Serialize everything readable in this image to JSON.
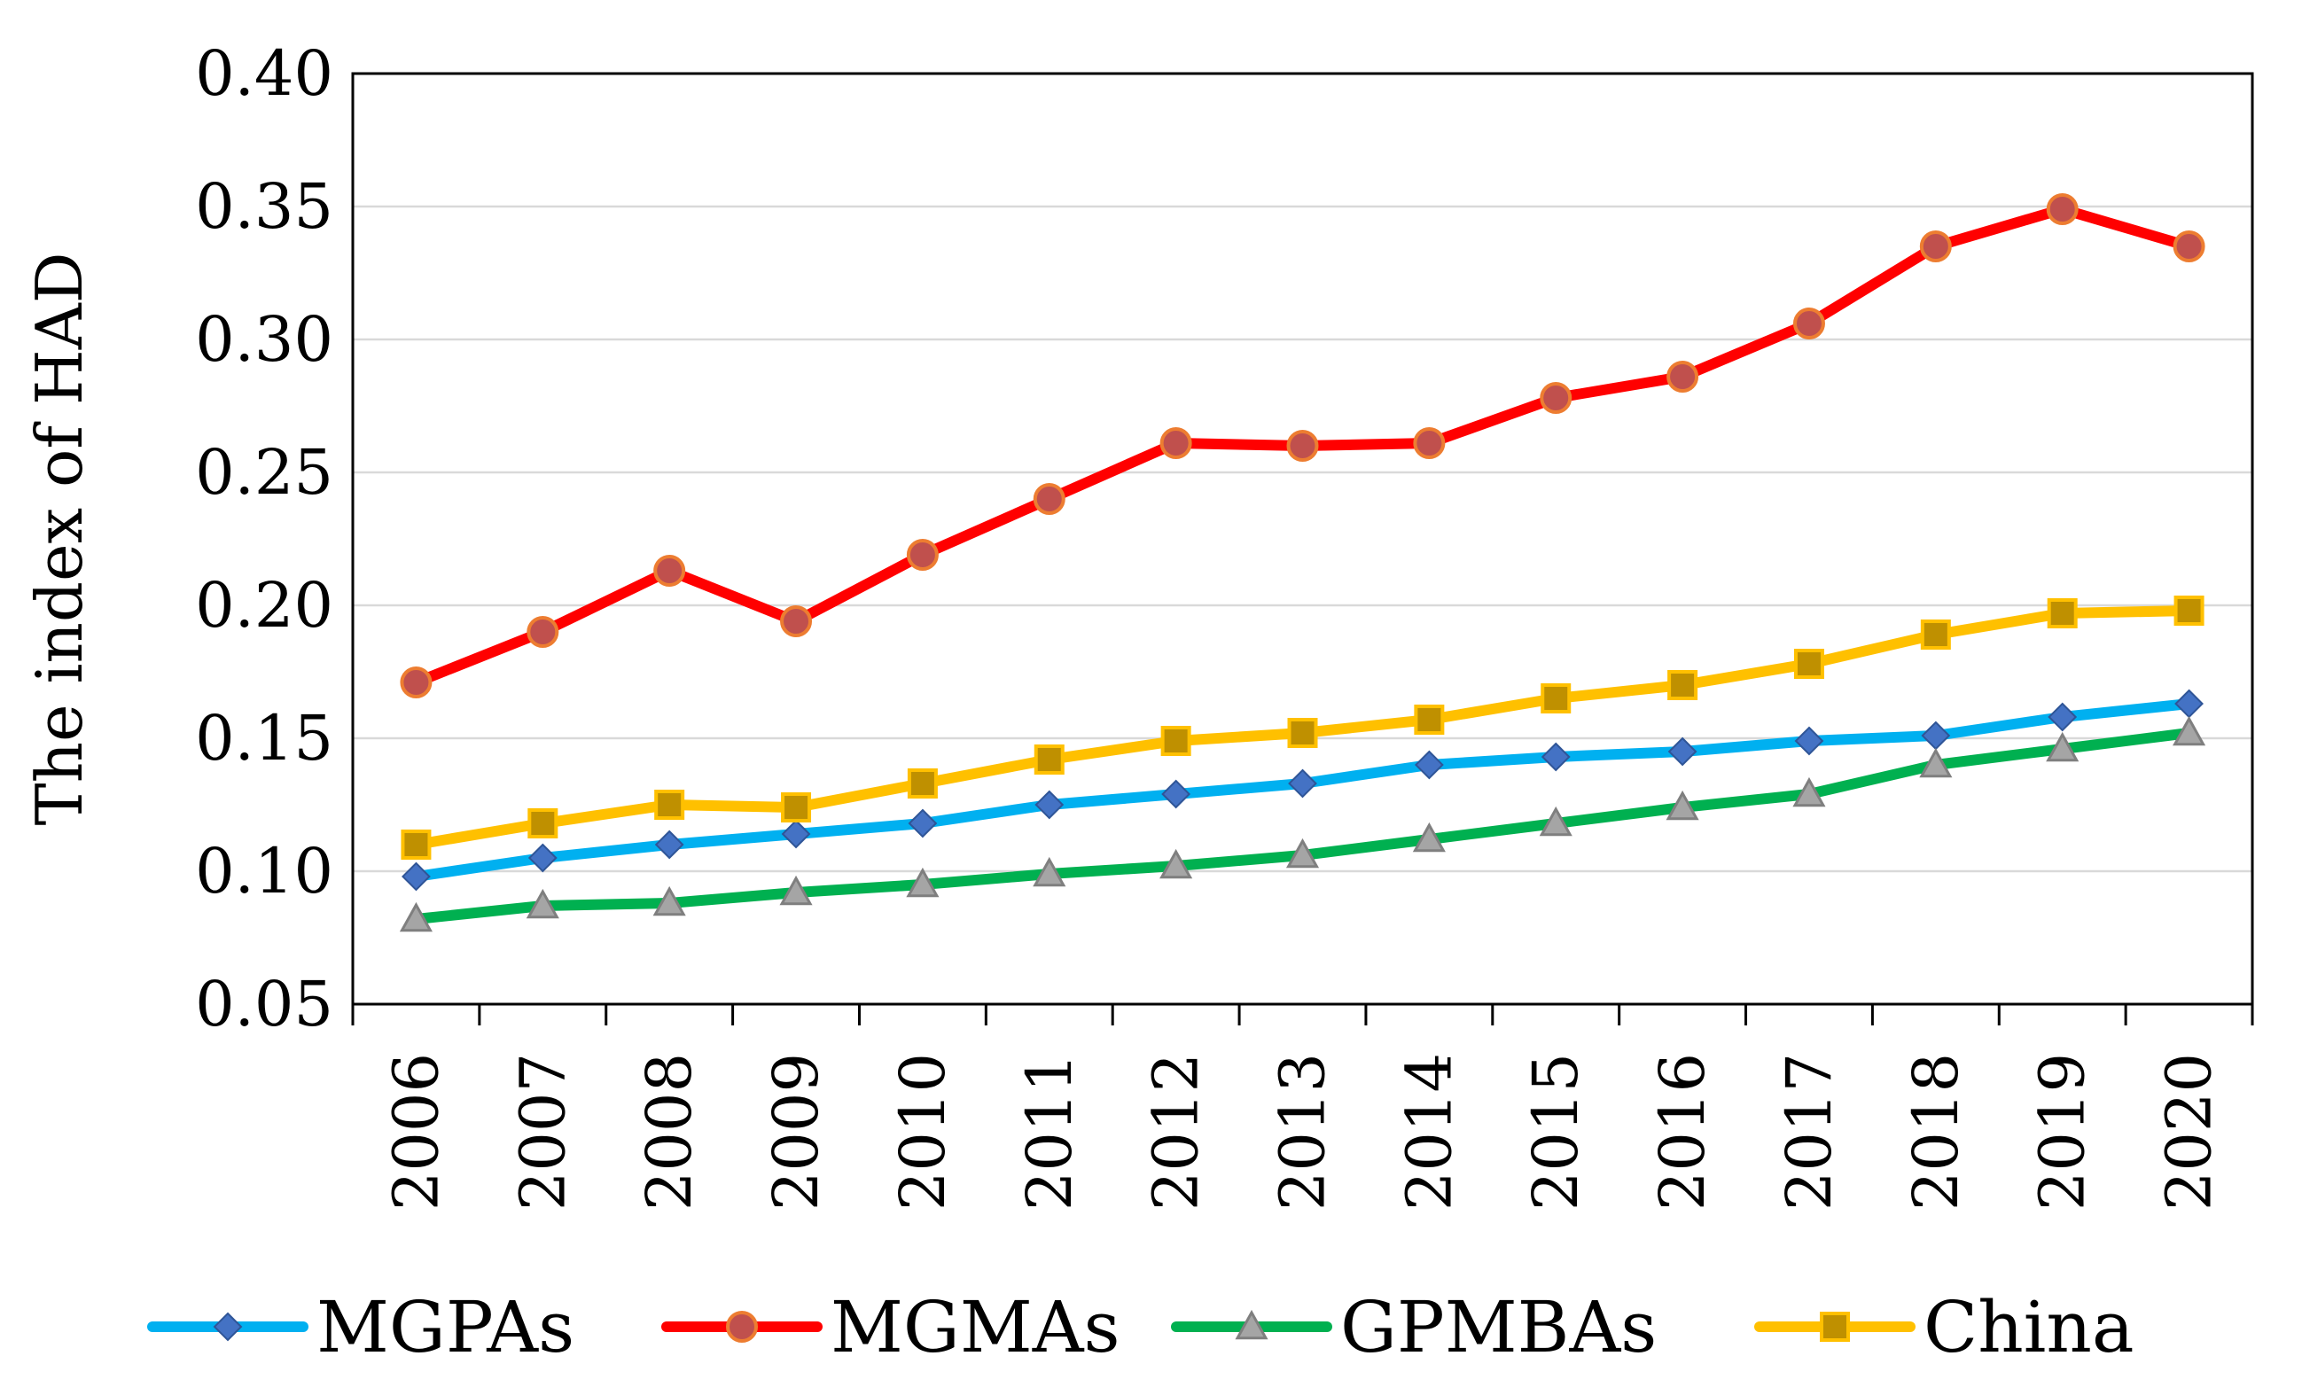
{
  "chart_data": {
    "type": "line",
    "title": "",
    "xlabel": "",
    "ylabel": "The index of HAD",
    "ylim": [
      0.05,
      0.4
    ],
    "ytick_labels": [
      "0.05",
      "0.10",
      "0.15",
      "0.20",
      "0.25",
      "0.30",
      "0.35",
      "0.40"
    ],
    "categories": [
      "2006",
      "2007",
      "2008",
      "2009",
      "2010",
      "2011",
      "2012",
      "2013",
      "2014",
      "2015",
      "2016",
      "2017",
      "2018",
      "2019",
      "2020"
    ],
    "grid": "horizontal",
    "legend_position": "bottom",
    "series": [
      {
        "name": "MGPAs",
        "marker": "diamond",
        "color": "#00B0F0",
        "marker_color": "#4472C4",
        "values": [
          0.098,
          0.105,
          0.11,
          0.114,
          0.118,
          0.125,
          0.129,
          0.133,
          0.14,
          0.143,
          0.145,
          0.149,
          0.151,
          0.158,
          0.163
        ]
      },
      {
        "name": "MGMAs",
        "marker": "circle",
        "color": "#FF0000",
        "marker_color": "#C0504D",
        "values": [
          0.171,
          0.19,
          0.213,
          0.194,
          0.219,
          0.24,
          0.261,
          0.26,
          0.261,
          0.278,
          0.286,
          0.306,
          0.335,
          0.349,
          0.335
        ]
      },
      {
        "name": "GPMBAs",
        "marker": "triangle",
        "color": "#00B050",
        "marker_color": "#A5A5A5",
        "values": [
          0.082,
          0.087,
          0.088,
          0.092,
          0.095,
          0.099,
          0.102,
          0.106,
          0.112,
          0.118,
          0.124,
          0.129,
          0.14,
          0.146,
          0.152
        ]
      },
      {
        "name": "China",
        "marker": "square",
        "color": "#FFC000",
        "marker_color": "#BF9000",
        "values": [
          0.11,
          0.118,
          0.125,
          0.124,
          0.133,
          0.142,
          0.149,
          0.152,
          0.157,
          0.165,
          0.17,
          0.178,
          0.189,
          0.197,
          0.198
        ]
      }
    ]
  }
}
